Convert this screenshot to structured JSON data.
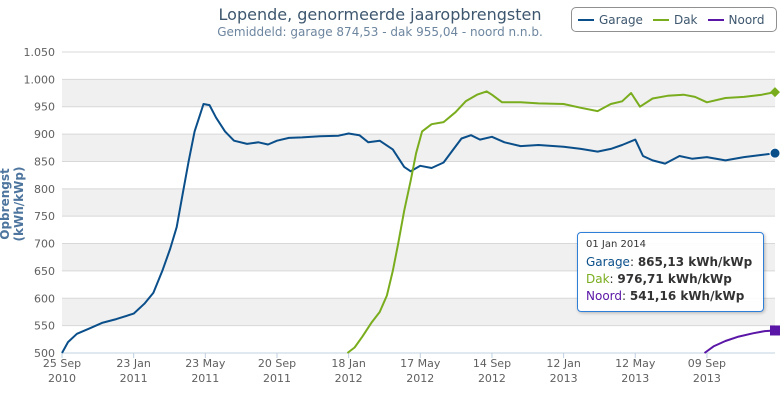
{
  "chart_data": {
    "type": "line",
    "title": "Lopende, genormeerde jaaropbrengsten",
    "subtitle": "Gemiddeld: garage 874,53 - dak 955,04 - noord n.n.b.",
    "ylabel": "Opbrengst (kWh/kWp)",
    "xlabel": "",
    "ylim": [
      500,
      1050
    ],
    "xlim": [
      "2010-09-25",
      "2014-01-01"
    ],
    "grid": true,
    "legend": "top-right",
    "y_ticks": [
      "500",
      "550",
      "600",
      "650",
      "700",
      "750",
      "800",
      "850",
      "900",
      "950",
      "1.000",
      "1.050"
    ],
    "x_ticks": [
      {
        "date": "2010-09-25",
        "line1": "25 Sep",
        "line2": "2010"
      },
      {
        "date": "2011-01-23",
        "line1": "23 Jan",
        "line2": "2011"
      },
      {
        "date": "2011-05-23",
        "line1": "23 May",
        "line2": "2011"
      },
      {
        "date": "2011-09-20",
        "line1": "20 Sep",
        "line2": "2011"
      },
      {
        "date": "2012-01-18",
        "line1": "18 Jan",
        "line2": "2012"
      },
      {
        "date": "2012-05-17",
        "line1": "17 May",
        "line2": "2012"
      },
      {
        "date": "2012-09-14",
        "line1": "14 Sep",
        "line2": "2012"
      },
      {
        "date": "2013-01-12",
        "line1": "12 Jan",
        "line2": "2013"
      },
      {
        "date": "2013-05-12",
        "line1": "12 May",
        "line2": "2013"
      },
      {
        "date": "2013-09-09",
        "line1": "09 Sep",
        "line2": "2013"
      }
    ],
    "series": [
      {
        "name": "Garage",
        "color": "#0b4f8a",
        "marker": "circle",
        "points": [
          [
            "2010-09-25",
            500
          ],
          [
            "2010-10-05",
            520
          ],
          [
            "2010-10-20",
            535
          ],
          [
            "2010-11-10",
            545
          ],
          [
            "2010-12-01",
            555
          ],
          [
            "2010-12-25",
            562
          ],
          [
            "2011-01-23",
            572
          ],
          [
            "2011-02-10",
            590
          ],
          [
            "2011-02-25",
            610
          ],
          [
            "2011-03-12",
            650
          ],
          [
            "2011-03-25",
            690
          ],
          [
            "2011-04-05",
            730
          ],
          [
            "2011-04-15",
            790
          ],
          [
            "2011-04-25",
            850
          ],
          [
            "2011-05-05",
            905
          ],
          [
            "2011-05-15",
            938
          ],
          [
            "2011-05-20",
            955
          ],
          [
            "2011-05-30",
            953
          ],
          [
            "2011-06-10",
            930
          ],
          [
            "2011-06-25",
            905
          ],
          [
            "2011-07-10",
            888
          ],
          [
            "2011-08-01",
            882
          ],
          [
            "2011-08-20",
            885
          ],
          [
            "2011-09-05",
            881
          ],
          [
            "2011-09-20",
            888
          ],
          [
            "2011-10-10",
            893
          ],
          [
            "2011-11-01",
            894
          ],
          [
            "2011-12-01",
            896
          ],
          [
            "2012-01-01",
            897
          ],
          [
            "2012-01-18",
            901
          ],
          [
            "2012-02-05",
            898
          ],
          [
            "2012-02-20",
            885
          ],
          [
            "2012-03-10",
            888
          ],
          [
            "2012-04-01",
            872
          ],
          [
            "2012-04-20",
            840
          ],
          [
            "2012-05-01",
            832
          ],
          [
            "2012-05-17",
            842
          ],
          [
            "2012-06-05",
            838
          ],
          [
            "2012-06-25",
            848
          ],
          [
            "2012-07-10",
            870
          ],
          [
            "2012-07-25",
            892
          ],
          [
            "2012-08-10",
            898
          ],
          [
            "2012-08-25",
            890
          ],
          [
            "2012-09-14",
            895
          ],
          [
            "2012-10-05",
            885
          ],
          [
            "2012-11-01",
            878
          ],
          [
            "2012-12-01",
            880
          ],
          [
            "2013-01-12",
            877
          ],
          [
            "2013-02-10",
            873
          ],
          [
            "2013-03-10",
            868
          ],
          [
            "2013-04-01",
            873
          ],
          [
            "2013-04-20",
            880
          ],
          [
            "2013-05-12",
            890
          ],
          [
            "2013-05-25",
            860
          ],
          [
            "2013-06-10",
            852
          ],
          [
            "2013-07-01",
            846
          ],
          [
            "2013-07-25",
            860
          ],
          [
            "2013-08-15",
            855
          ],
          [
            "2013-09-09",
            858
          ],
          [
            "2013-10-10",
            852
          ],
          [
            "2013-11-10",
            858
          ],
          [
            "2013-12-10",
            862
          ],
          [
            "2014-01-01",
            865.13
          ]
        ]
      },
      {
        "name": "Dak",
        "color": "#7aad1e",
        "marker": "diamond",
        "points": [
          [
            "2012-01-16",
            500
          ],
          [
            "2012-01-28",
            510
          ],
          [
            "2012-02-10",
            530
          ],
          [
            "2012-02-25",
            555
          ],
          [
            "2012-03-10",
            575
          ],
          [
            "2012-03-22",
            605
          ],
          [
            "2012-04-01",
            650
          ],
          [
            "2012-04-10",
            700
          ],
          [
            "2012-04-20",
            760
          ],
          [
            "2012-05-01",
            815
          ],
          [
            "2012-05-10",
            865
          ],
          [
            "2012-05-20",
            905
          ],
          [
            "2012-06-05",
            918
          ],
          [
            "2012-06-25",
            922
          ],
          [
            "2012-07-15",
            940
          ],
          [
            "2012-08-01",
            960
          ],
          [
            "2012-08-20",
            972
          ],
          [
            "2012-09-05",
            978
          ],
          [
            "2012-09-14",
            972
          ],
          [
            "2012-10-01",
            958
          ],
          [
            "2012-11-01",
            958
          ],
          [
            "2012-12-01",
            956
          ],
          [
            "2013-01-12",
            955
          ],
          [
            "2013-02-10",
            948
          ],
          [
            "2013-03-10",
            942
          ],
          [
            "2013-04-01",
            955
          ],
          [
            "2013-04-20",
            960
          ],
          [
            "2013-05-05",
            975
          ],
          [
            "2013-05-20",
            950
          ],
          [
            "2013-06-10",
            965
          ],
          [
            "2013-07-05",
            970
          ],
          [
            "2013-08-01",
            972
          ],
          [
            "2013-08-20",
            968
          ],
          [
            "2013-09-09",
            958
          ],
          [
            "2013-10-10",
            966
          ],
          [
            "2013-11-10",
            968
          ],
          [
            "2013-12-10",
            972
          ],
          [
            "2014-01-01",
            976.71
          ]
        ]
      },
      {
        "name": "Noord",
        "color": "#5a16a6",
        "marker": "square",
        "points": [
          [
            "2013-09-05",
            500
          ],
          [
            "2013-09-20",
            512
          ],
          [
            "2013-10-10",
            522
          ],
          [
            "2013-11-01",
            530
          ],
          [
            "2013-11-25",
            536
          ],
          [
            "2013-12-15",
            540
          ],
          [
            "2014-01-01",
            541.16
          ]
        ]
      }
    ],
    "tooltip": {
      "date": "01 Jan 2014",
      "rows": [
        {
          "name": "Garage",
          "value": "865,13 kWh/kWp"
        },
        {
          "name": "Dak",
          "value": "976,71 kWh/kWp"
        },
        {
          "name": "Noord",
          "value": "541,16 kWh/kWp"
        }
      ]
    }
  }
}
